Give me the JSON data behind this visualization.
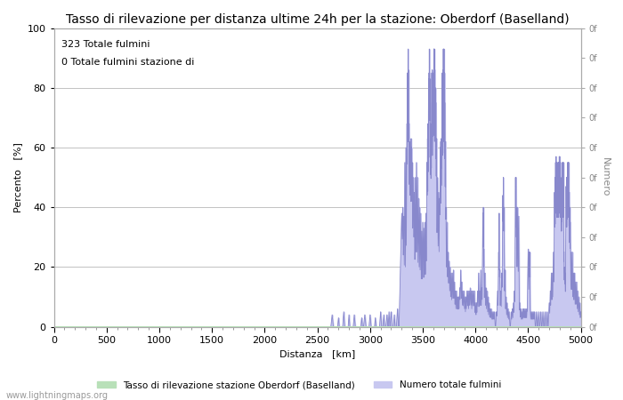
{
  "title": "Tasso di rilevazione per distanza ultime 24h per la stazione: Oberdorf (Baselland)",
  "xlabel": "Distanza   [km]",
  "ylabel_left": "Percento   [%]",
  "ylabel_right": "Numero",
  "annotation_line1": "323 Totale fulmini",
  "annotation_line2": "0 Totale fulmini stazione di",
  "xlim": [
    0,
    5000
  ],
  "ylim": [
    0,
    100
  ],
  "xticks": [
    0,
    500,
    1000,
    1500,
    2000,
    2500,
    3000,
    3500,
    4000,
    4500,
    5000
  ],
  "yticks_left": [
    0,
    20,
    40,
    60,
    80,
    100
  ],
  "legend_labels": [
    "Tasso di rilevazione stazione Oberdorf (Baselland)",
    "Numero totale fulmini"
  ],
  "legend_colors": [
    "#b8e0b8",
    "#c8c8f0"
  ],
  "line_color": "#8888cc",
  "fill_color": "#c8c8f0",
  "green_fill_color": "#b8e0b8",
  "background_color": "#ffffff",
  "watermark": "www.lightningmaps.org",
  "grid_color": "#aaaaaa",
  "title_fontsize": 10,
  "axis_fontsize": 8,
  "tick_fontsize": 8,
  "annotation_fontsize": 8
}
